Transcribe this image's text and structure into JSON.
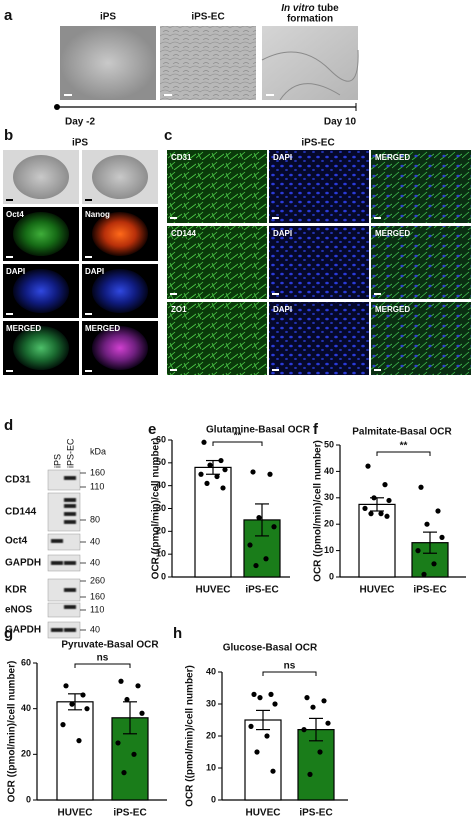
{
  "panel_labels": [
    "a",
    "b",
    "c",
    "d",
    "e",
    "f",
    "g",
    "h"
  ],
  "panel_a": {
    "labels": [
      "iPS",
      "iPS-EC"
    ],
    "tube_italic": "In vitro",
    "tube_rest": "tube",
    "tube_line2": "formation",
    "timeline": [
      "Day -2",
      "Day 10"
    ]
  },
  "panel_b": {
    "title": "iPS",
    "image_labels": [
      "Oct4",
      "Nanog",
      "DAPI",
      "DAPI",
      "MERGED",
      "MERGED"
    ]
  },
  "panel_c": {
    "title": "iPS-EC",
    "image_labels": [
      "CD31",
      "DAPI",
      "MERGED",
      "CD144",
      "DAPI",
      "MERGED",
      "ZO1",
      "DAPI",
      "MERGED"
    ]
  },
  "panel_d": {
    "lanes": [
      "iPS",
      "iPS-EC"
    ],
    "unit": "kDa",
    "proteins": [
      "CD31",
      "CD144",
      "Oct4",
      "GAPDH",
      "KDR",
      "eNOS",
      "GAPDH"
    ],
    "markers": [
      160,
      110,
      80,
      40,
      40,
      260,
      160,
      110,
      40
    ]
  },
  "chart_data": [
    {
      "type": "bar",
      "title": "Glutamine-Basal OCR",
      "y_label": "OCR ((pmol/min)/cell number)",
      "categories": [
        "HUVEC",
        "iPS-EC"
      ],
      "values": [
        48,
        25
      ],
      "errors": [
        3,
        7
      ],
      "points": [
        [
          59,
          51,
          49,
          47,
          45,
          44,
          41,
          39
        ],
        [
          46,
          45,
          26,
          22,
          14,
          8,
          5
        ]
      ],
      "colors": [
        "#ffffff",
        "#1a7d1a"
      ],
      "ylim": [
        0,
        60
      ],
      "yticks": [
        0,
        10,
        20,
        30,
        40,
        50,
        60
      ],
      "significance": "**"
    },
    {
      "type": "bar",
      "title": "Palmitate-Basal OCR",
      "y_label": "OCR ((pmol/min)/cell number)",
      "categories": [
        "HUVEC",
        "iPS-EC"
      ],
      "values": [
        27.5,
        13
      ],
      "errors": [
        2.5,
        4
      ],
      "points": [
        [
          42,
          35,
          30,
          29,
          26,
          24,
          24,
          23
        ],
        [
          34,
          25,
          20,
          15,
          10,
          5,
          1
        ]
      ],
      "colors": [
        "#ffffff",
        "#1a7d1a"
      ],
      "ylim": [
        0,
        50
      ],
      "yticks": [
        0,
        10,
        20,
        30,
        40,
        50
      ],
      "significance": "**"
    },
    {
      "type": "bar",
      "title": "Pyruvate-Basal OCR",
      "y_label": "OCR ((pmol/min)/cell number)",
      "categories": [
        "HUVEC",
        "iPS-EC"
      ],
      "values": [
        43,
        36
      ],
      "errors": [
        3.5,
        7
      ],
      "points": [
        [
          50,
          46,
          42,
          40,
          33,
          26
        ],
        [
          52,
          50,
          44,
          38,
          25,
          20,
          12
        ]
      ],
      "colors": [
        "#ffffff",
        "#1a7d1a"
      ],
      "ylim": [
        0,
        60
      ],
      "yticks": [
        0,
        20,
        40,
        60
      ],
      "significance": "ns"
    },
    {
      "type": "bar",
      "title": "Glucose-Basal OCR",
      "y_label": "OCR ((pmol/min)/cell number)",
      "categories": [
        "HUVEC",
        "iPS-EC"
      ],
      "values": [
        25,
        22
      ],
      "errors": [
        3,
        3.5
      ],
      "points": [
        [
          33,
          33,
          32,
          30,
          23,
          20,
          15,
          9
        ],
        [
          32,
          31,
          29,
          24,
          22,
          15,
          8
        ]
      ],
      "colors": [
        "#ffffff",
        "#1a7d1a"
      ],
      "ylim": [
        0,
        40
      ],
      "yticks": [
        0,
        10,
        20,
        30,
        40
      ],
      "significance": "ns"
    }
  ]
}
